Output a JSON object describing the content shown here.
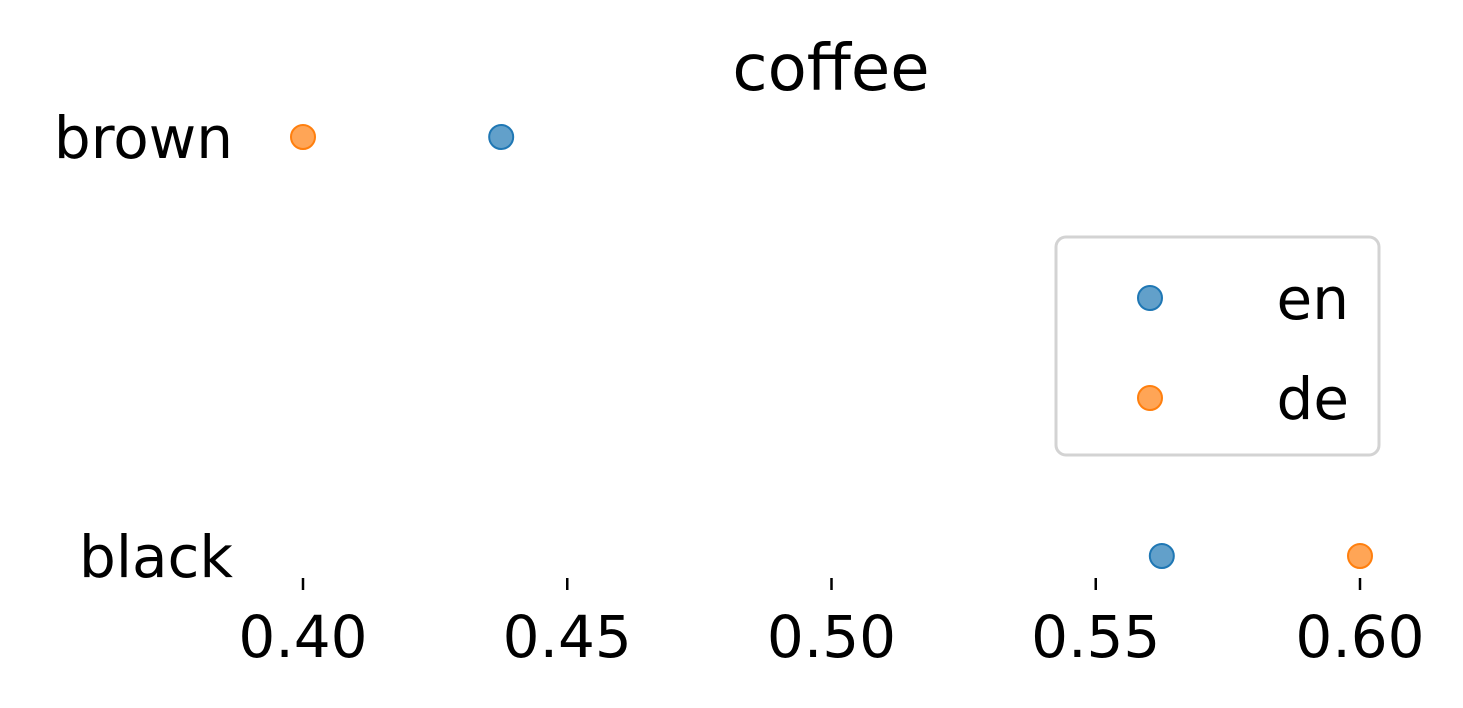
{
  "chart_data": {
    "type": "scatter",
    "title": "coffee",
    "xlabel": "",
    "ylabel": "",
    "categories": [
      "brown",
      "black"
    ],
    "xlim": [
      0.4,
      0.6
    ],
    "xticks": [
      0.4,
      0.45,
      0.5,
      0.55,
      0.6
    ],
    "xtick_labels": [
      "0.40",
      "0.45",
      "0.50",
      "0.55",
      "0.60"
    ],
    "grid": false,
    "legend_position": "right",
    "series": [
      {
        "name": "en",
        "color": "#1f77b4",
        "points": [
          {
            "category": "brown",
            "x": 0.4375
          },
          {
            "category": "black",
            "x": 0.5625
          }
        ]
      },
      {
        "name": "de",
        "color": "#ff7f0e",
        "points": [
          {
            "category": "brown",
            "x": 0.4
          },
          {
            "category": "black",
            "x": 0.6
          }
        ]
      }
    ]
  }
}
